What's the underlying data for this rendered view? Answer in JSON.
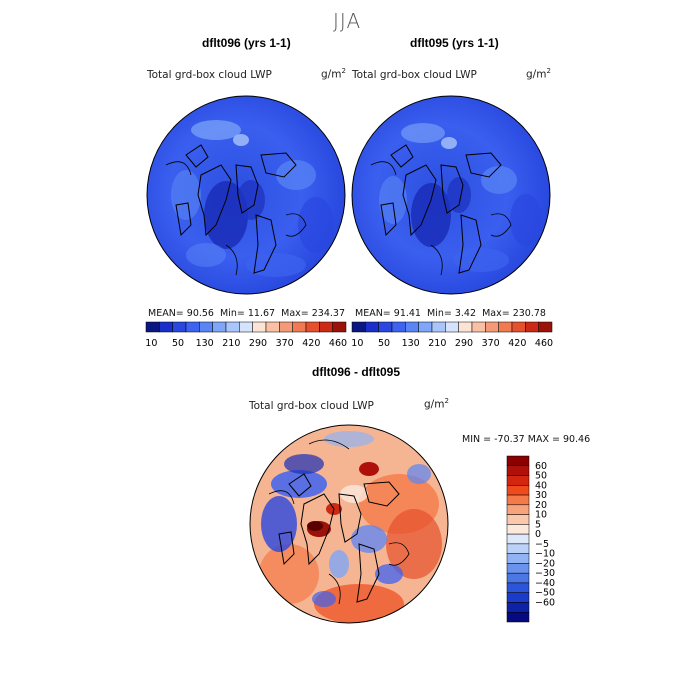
{
  "figure": {
    "season": "JJA",
    "left_panel": {
      "case": "dflt096 (yrs 1-1)",
      "field": "Total grd-box cloud LWP",
      "units_base": "g/m",
      "units_exp": "2",
      "mean": "MEAN=   90.56",
      "min": "Min=   11.67",
      "max": "Max=  234.37"
    },
    "right_panel": {
      "case": "dflt095 (yrs 1-1)",
      "field": "Total grd-box cloud LWP",
      "units_base": "g/m",
      "units_exp": "2",
      "mean": "MEAN=   91.41",
      "min": "Min=    3.42",
      "max": "Max=  230.78"
    },
    "diff_panel": {
      "case": "dflt096 - dflt095",
      "field": "Total grd-box cloud LWP",
      "units_base": "g/m",
      "units_exp": "2",
      "minmax": "MIN = -70.37 MAX =  90.46"
    }
  },
  "colorbar_top": {
    "colors": [
      "#0b1780",
      "#1a2ecc",
      "#2a47e0",
      "#3d63f0",
      "#5a86f5",
      "#7fa6f8",
      "#a9c6fb",
      "#d6e3fd",
      "#fde3d3",
      "#f9c0a4",
      "#f59a76",
      "#f07a52",
      "#e6502c",
      "#cc2a14",
      "#9a1208"
    ],
    "labels": [
      "10",
      "50",
      "130",
      "210",
      "290",
      "370",
      "420",
      "460"
    ]
  },
  "colorbar_diff": {
    "colors": [
      "#8b0000",
      "#b0100a",
      "#d4250f",
      "#ee4a1c",
      "#f47a4a",
      "#f7a37c",
      "#fac8ac",
      "#fde9dc",
      "#dfe8fb",
      "#bcd1f8",
      "#91b2f3",
      "#6a93ee",
      "#4a76e6",
      "#2d55dc",
      "#1a3cc8",
      "#0e22a8",
      "#050a80"
    ],
    "labels": [
      "60",
      "50",
      "40",
      "30",
      "20",
      "10",
      "5",
      "0",
      "−5",
      "−10",
      "−20",
      "−30",
      "−40",
      "−50",
      "−60"
    ]
  }
}
